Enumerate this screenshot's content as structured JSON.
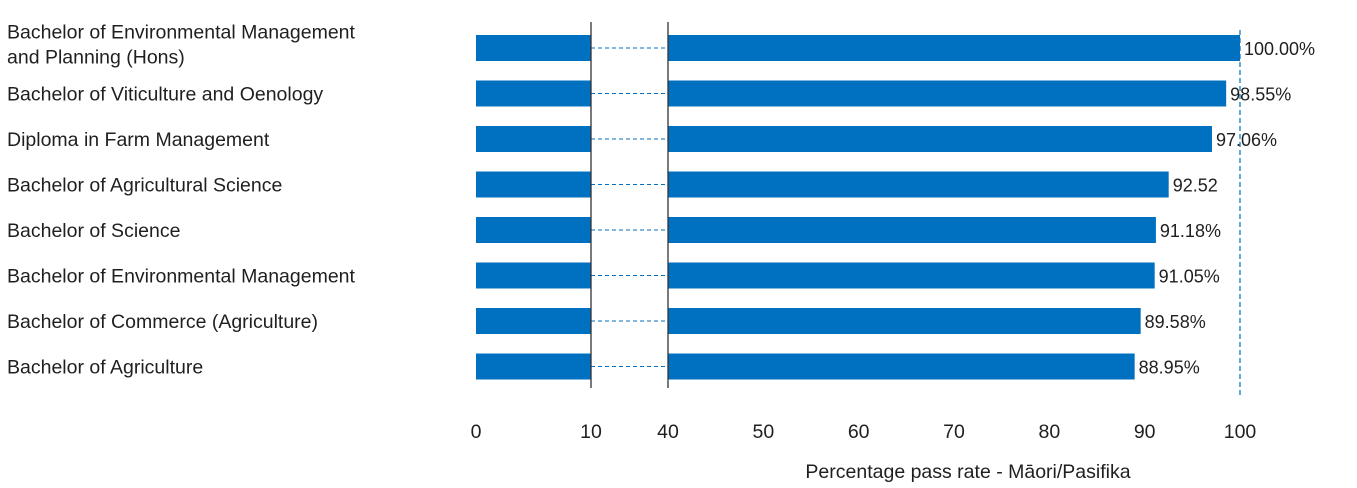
{
  "chart_data": {
    "type": "bar",
    "orientation": "horizontal",
    "categories": [
      [
        "Bachelor of Environmental Management",
        "and Planning (Hons)"
      ],
      [
        "Bachelor of Viticulture and Oenology"
      ],
      [
        "Diploma in Farm Management"
      ],
      [
        "Bachelor of Agricultural Science"
      ],
      [
        "Bachelor of Science"
      ],
      [
        "Bachelor of Environmental Management"
      ],
      [
        "Bachelor of Commerce (Agriculture)"
      ],
      [
        "Bachelor of Agriculture"
      ]
    ],
    "values": [
      100.0,
      98.55,
      97.06,
      92.52,
      91.18,
      91.05,
      89.58,
      88.95
    ],
    "data_labels": [
      "100.00%",
      "98.55%",
      "97.06%",
      "92.52",
      "91.18%",
      "91.05%",
      "89.58%",
      "88.95%"
    ],
    "xlabel": "Percentage pass rate - Māori/Pasifika",
    "axis_break": [
      10,
      40
    ],
    "xticks": [
      0,
      10,
      40,
      50,
      60,
      70,
      80,
      90,
      100
    ],
    "xlim": [
      0,
      100
    ],
    "reference_line": 100,
    "grid": false,
    "bar_color": "#0070C0",
    "break_line_color": "#0070C0"
  }
}
